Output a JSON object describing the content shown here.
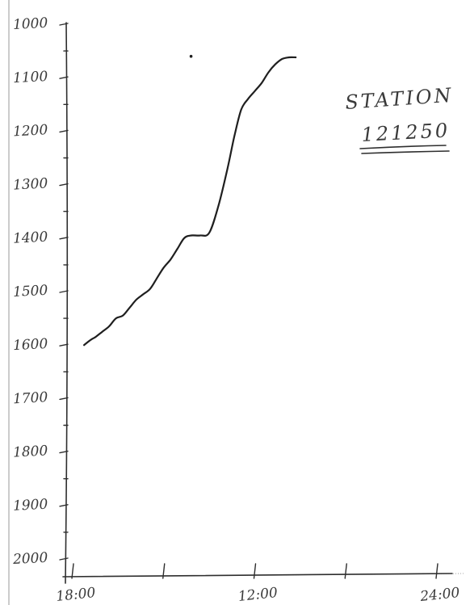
{
  "chart_data": {
    "type": "line",
    "title": "",
    "annotation": {
      "line1": "STATION",
      "line2": "121250"
    },
    "xlabel": "",
    "ylabel": "",
    "x_ticks": [
      {
        "value": 8,
        "label": "18:00"
      },
      {
        "value": 12,
        "label": ""
      },
      {
        "value": 16,
        "label": "12:00"
      },
      {
        "value": 20,
        "label": ""
      },
      {
        "value": 24,
        "label": "24:00"
      }
    ],
    "y_ticks": [
      {
        "value": 1000,
        "label": "1000"
      },
      {
        "value": 1100,
        "label": "1100"
      },
      {
        "value": 1200,
        "label": "1200"
      },
      {
        "value": 1300,
        "label": "1300"
      },
      {
        "value": 1400,
        "label": "1400"
      },
      {
        "value": 1500,
        "label": "1500"
      },
      {
        "value": 1600,
        "label": "1600"
      },
      {
        "value": 1700,
        "label": "1700"
      },
      {
        "value": 1800,
        "label": "1800"
      },
      {
        "value": 1900,
        "label": "1900"
      },
      {
        "value": 2000,
        "label": "2000"
      }
    ],
    "xlim": [
      8,
      24
    ],
    "ylim": [
      2000,
      1000
    ],
    "y_inverted": true,
    "grid": false,
    "series": [
      {
        "x": [
          8.5,
          8.8,
          9.0,
          9.3,
          9.6,
          9.9,
          10.2,
          10.5,
          10.8,
          11.1,
          11.4,
          11.7,
          12.0,
          12.3,
          12.6,
          12.9,
          13.2,
          13.6,
          14.0,
          14.4,
          14.8,
          15.1,
          15.4,
          15.7,
          16.0,
          16.3,
          16.6,
          16.9,
          17.2,
          17.5,
          17.8
        ],
        "y": [
          1600,
          1590,
          1585,
          1575,
          1565,
          1550,
          1545,
          1530,
          1515,
          1505,
          1495,
          1475,
          1455,
          1440,
          1420,
          1400,
          1395,
          1395,
          1390,
          1340,
          1270,
          1210,
          1160,
          1140,
          1125,
          1110,
          1090,
          1075,
          1065,
          1062,
          1062
        ]
      }
    ],
    "stray_points": [
      {
        "x": 13.2,
        "y": 1060
      }
    ],
    "colors": {
      "ink": "#1f1f1f",
      "axis": "#2e2e2e",
      "text": "#3a3a3a"
    }
  }
}
